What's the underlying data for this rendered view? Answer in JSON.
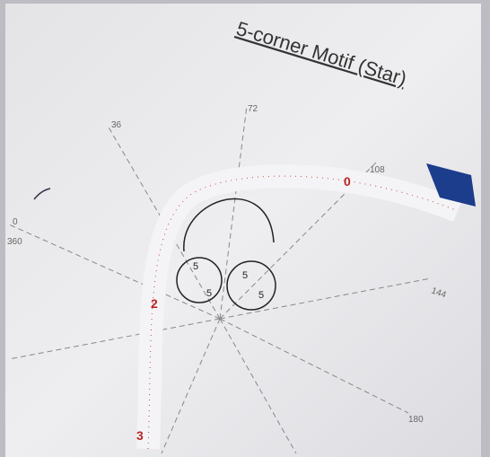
{
  "title": "5-corner Motif (Star)",
  "angle_labels": {
    "zero": "0",
    "full": "360",
    "a36": "36",
    "a72": "72",
    "a108": "108",
    "a144": "144",
    "a180": "180"
  },
  "tape_labels": [
    "0",
    "2",
    "3"
  ],
  "drawing_labels": [
    "5",
    "5",
    "5",
    "5"
  ]
}
